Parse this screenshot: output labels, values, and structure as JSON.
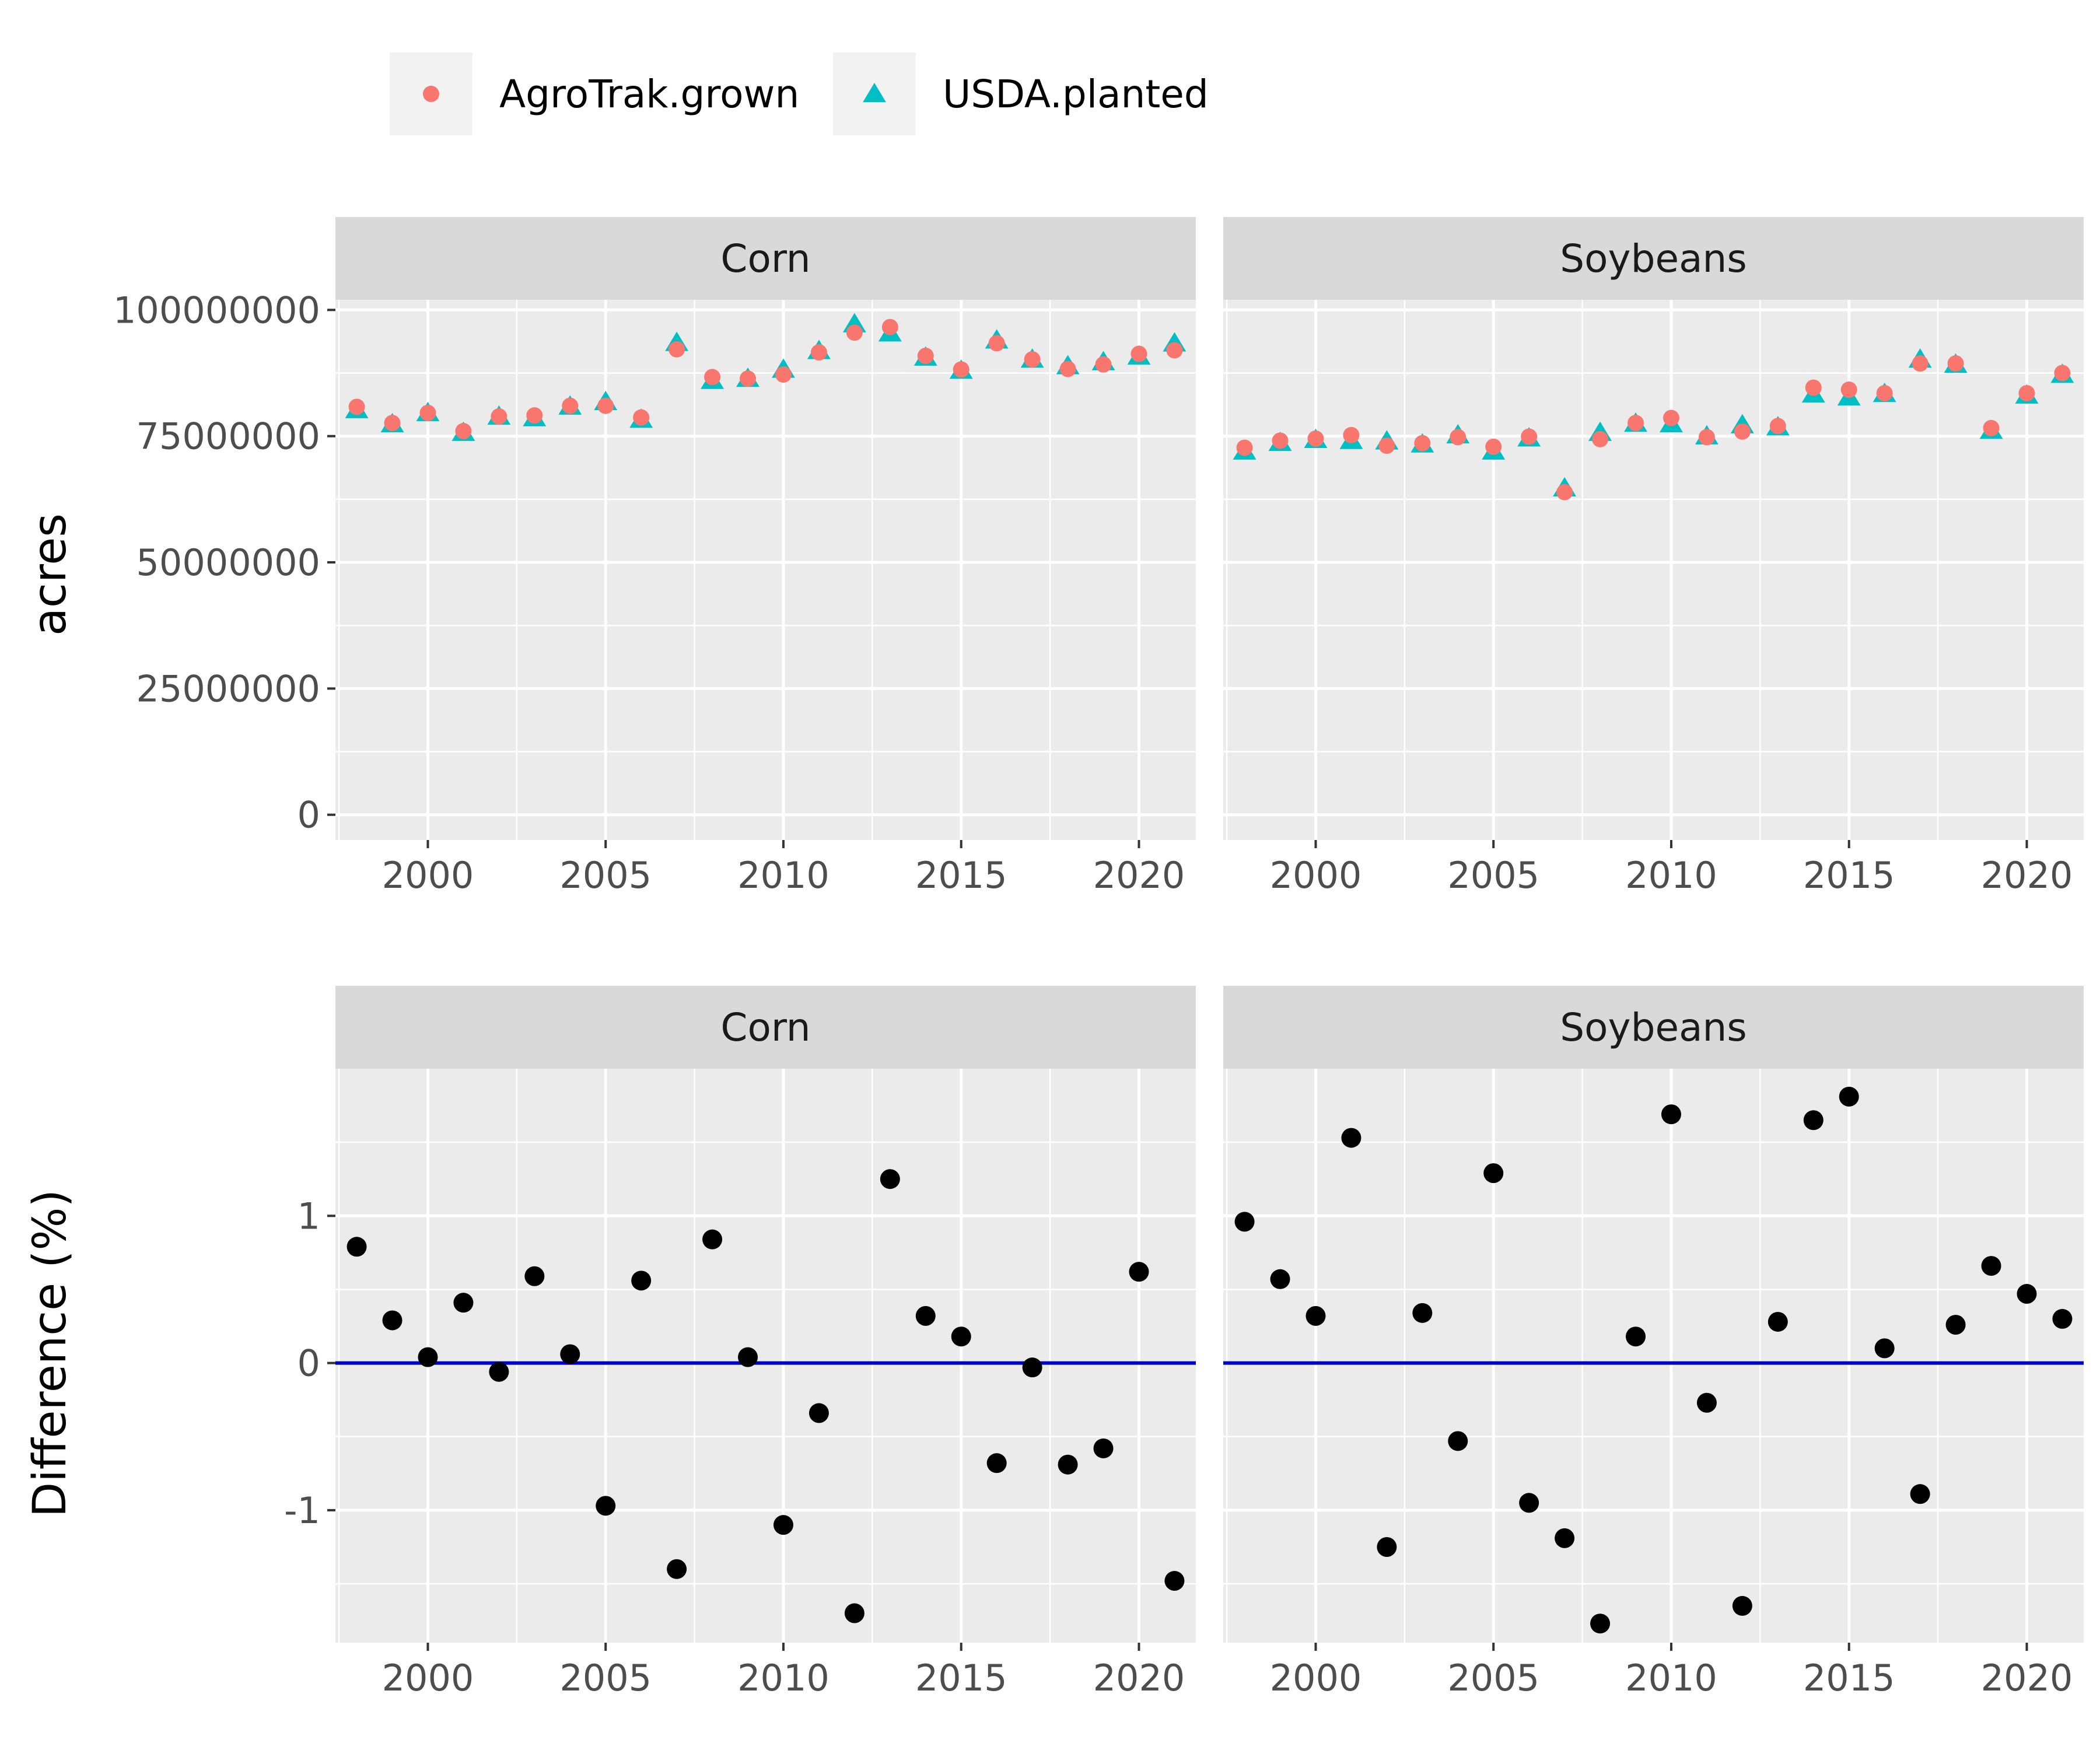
{
  "colors": {
    "agrotrak": "#F8766D",
    "usda": "#00BFC4",
    "panel_bg": "#EBEBEB",
    "strip_bg": "#D9D9D9",
    "grid": "#FFFFFF",
    "diff_point": "#000000",
    "zero_line": "#0000CC"
  },
  "legend": {
    "items": [
      {
        "label": "AgroTrak.grown",
        "shape": "circle",
        "color": "#F8766D"
      },
      {
        "label": "USDA.planted",
        "shape": "triangle",
        "color": "#00BFC4"
      }
    ]
  },
  "chart_data": [
    {
      "type": "scatter",
      "facet": "Corn",
      "ylabel": "acres",
      "xlim": [
        1997.4,
        2021.6
      ],
      "ylim": [
        -5000000,
        102000000
      ],
      "x_ticks": [
        2000,
        2005,
        2010,
        2015,
        2020
      ],
      "x_tick_labels": [
        "2000",
        "2005",
        "2010",
        "2015",
        "2020"
      ],
      "y_ticks": [
        0,
        25000000,
        50000000,
        75000000,
        100000000
      ],
      "y_tick_labels": [
        "0",
        "25000000",
        "50000000",
        "75000000",
        "100000000"
      ],
      "x": [
        1998,
        1999,
        2000,
        2001,
        2002,
        2003,
        2004,
        2005,
        2006,
        2007,
        2008,
        2009,
        2010,
        2011,
        2012,
        2013,
        2014,
        2015,
        2016,
        2017,
        2018,
        2019,
        2020,
        2021
      ],
      "series": [
        {
          "name": "USDA.planted",
          "values": [
            80200000,
            77400000,
            79600000,
            75700000,
            78900000,
            78600000,
            80900000,
            81800000,
            78300000,
            93500000,
            86000000,
            86400000,
            88200000,
            91900000,
            97200000,
            95400000,
            90600000,
            88000000,
            94000000,
            90200000,
            88900000,
            89700000,
            90800000,
            93400000
          ]
        },
        {
          "name": "AgroTrak.grown",
          "values": [
            80800000,
            77600000,
            79600000,
            76000000,
            78900000,
            79100000,
            81000000,
            81000000,
            78700000,
            92200000,
            86700000,
            86400000,
            87200000,
            91600000,
            95500000,
            96600000,
            90900000,
            88200000,
            93400000,
            90200000,
            88300000,
            89200000,
            91300000,
            92000000
          ]
        }
      ]
    },
    {
      "type": "scatter",
      "facet": "Soybeans",
      "ylabel": "acres",
      "xlim": [
        1997.4,
        2021.6
      ],
      "ylim": [
        -5000000,
        102000000
      ],
      "x_ticks": [
        2000,
        2005,
        2010,
        2015,
        2020
      ],
      "x_tick_labels": [
        "2000",
        "2005",
        "2010",
        "2015",
        "2020"
      ],
      "y_ticks": [
        0,
        25000000,
        50000000,
        75000000,
        100000000
      ],
      "x": [
        1998,
        1999,
        2000,
        2001,
        2002,
        2003,
        2004,
        2005,
        2006,
        2007,
        2008,
        2009,
        2010,
        2011,
        2012,
        2013,
        2014,
        2015,
        2016,
        2017,
        2018,
        2019,
        2020,
        2021
      ],
      "series": [
        {
          "name": "USDA.planted",
          "values": [
            72000000,
            73700000,
            74300000,
            74100000,
            74000000,
            73400000,
            75200000,
            72000000,
            74600000,
            64700000,
            75700000,
            77500000,
            77400000,
            75000000,
            77200000,
            76800000,
            83300000,
            82700000,
            83400000,
            90200000,
            89200000,
            76100000,
            83100000,
            87200000
          ]
        },
        {
          "name": "AgroTrak.grown",
          "values": [
            72700000,
            74100000,
            74500000,
            75200000,
            73100000,
            73600000,
            74800000,
            72900000,
            74900000,
            63900000,
            74400000,
            77600000,
            78600000,
            74800000,
            75900000,
            77000000,
            84600000,
            84200000,
            83500000,
            89400000,
            89400000,
            76600000,
            83500000,
            87500000
          ]
        }
      ]
    },
    {
      "type": "scatter",
      "facet": "Corn",
      "ylabel": "Difference (%)",
      "xlim": [
        1997.4,
        2021.6
      ],
      "ylim": [
        -1.9,
        2.0
      ],
      "x_ticks": [
        2000,
        2005,
        2010,
        2015,
        2020
      ],
      "x_tick_labels": [
        "2000",
        "2005",
        "2010",
        "2015",
        "2020"
      ],
      "y_ticks": [
        -1,
        0,
        1
      ],
      "y_tick_labels": [
        "-1",
        "0",
        "1"
      ],
      "hline": 0,
      "x": [
        1998,
        1999,
        2000,
        2001,
        2002,
        2003,
        2004,
        2005,
        2006,
        2007,
        2008,
        2009,
        2010,
        2011,
        2012,
        2013,
        2014,
        2015,
        2016,
        2017,
        2018,
        2019,
        2020,
        2021
      ],
      "values": [
        0.79,
        0.29,
        0.04,
        0.41,
        -0.06,
        0.59,
        0.06,
        -0.97,
        0.56,
        -1.4,
        0.84,
        0.04,
        -1.1,
        -0.34,
        -1.7,
        1.25,
        0.32,
        0.18,
        -0.68,
        -0.03,
        -0.69,
        -0.58,
        0.62,
        -1.48
      ]
    },
    {
      "type": "scatter",
      "facet": "Soybeans",
      "ylabel": "Difference (%)",
      "xlim": [
        1997.4,
        2021.6
      ],
      "ylim": [
        -1.9,
        2.0
      ],
      "x_ticks": [
        2000,
        2005,
        2010,
        2015,
        2020
      ],
      "x_tick_labels": [
        "2000",
        "2005",
        "2010",
        "2015",
        "2020"
      ],
      "y_ticks": [
        -1,
        0,
        1
      ],
      "hline": 0,
      "x": [
        1998,
        1999,
        2000,
        2001,
        2002,
        2003,
        2004,
        2005,
        2006,
        2007,
        2008,
        2009,
        2010,
        2011,
        2012,
        2013,
        2014,
        2015,
        2016,
        2017,
        2018,
        2019,
        2020,
        2021
      ],
      "values": [
        0.96,
        0.57,
        0.32,
        1.53,
        -1.25,
        0.34,
        -0.53,
        1.29,
        -0.95,
        -1.19,
        -1.77,
        0.18,
        1.69,
        -0.27,
        -1.65,
        0.28,
        1.65,
        1.81,
        0.1,
        -0.89,
        0.26,
        0.66,
        0.47,
        0.3
      ]
    }
  ]
}
